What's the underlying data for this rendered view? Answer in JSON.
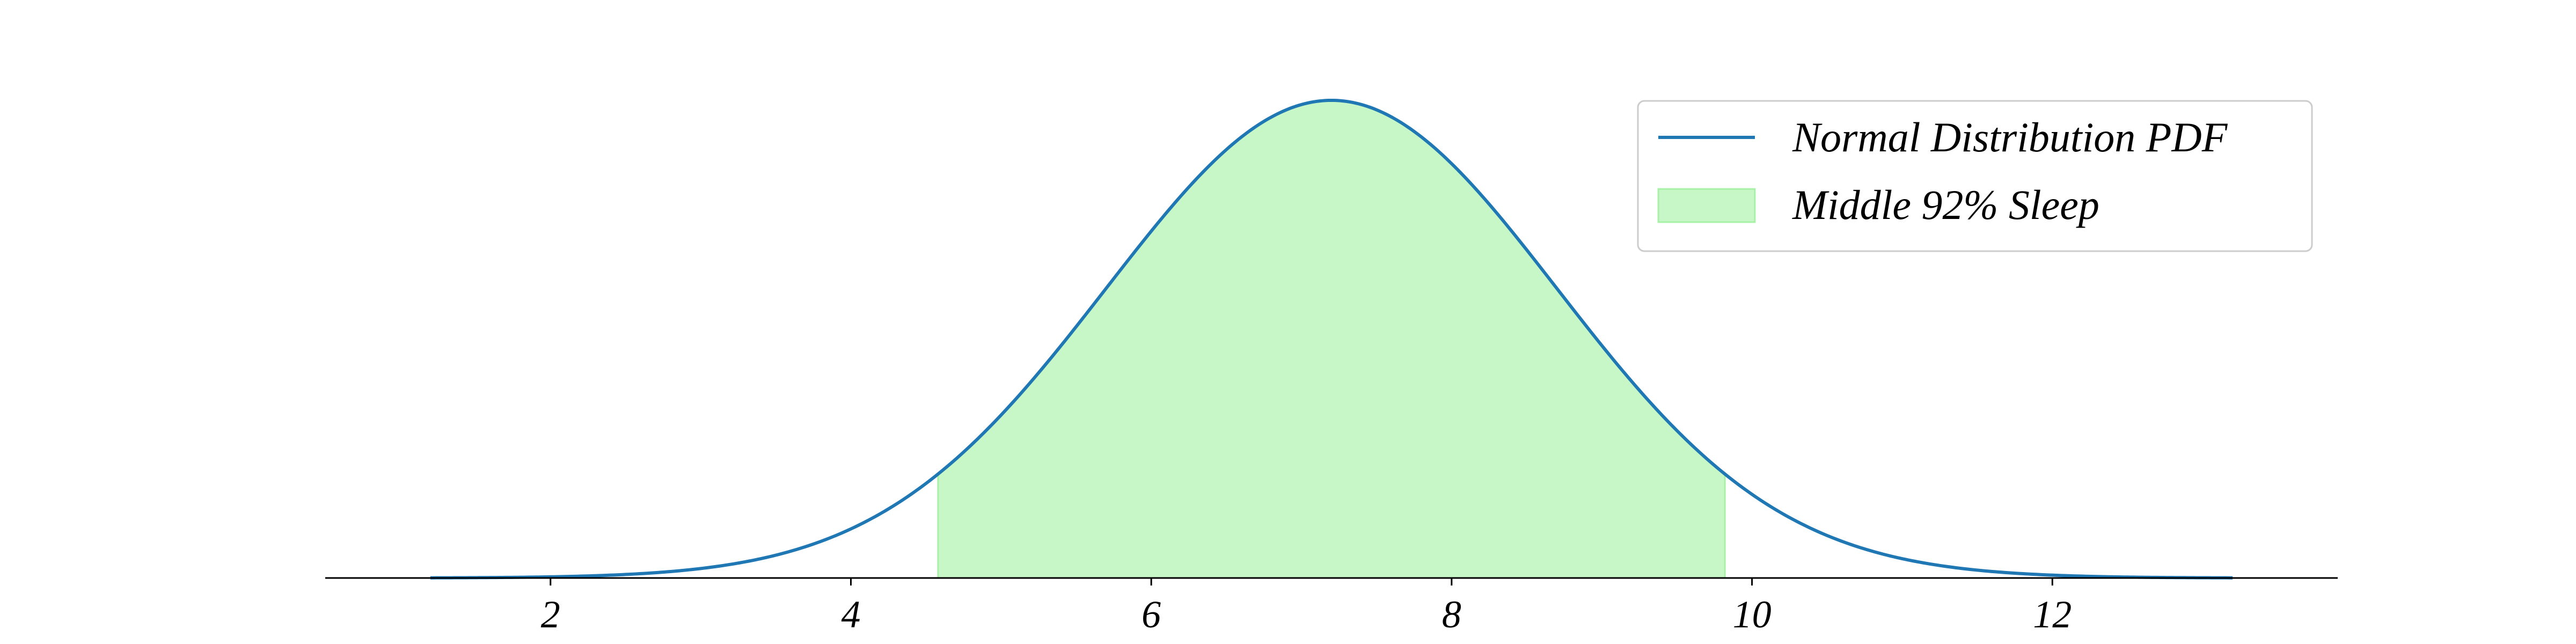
{
  "chart_data": {
    "type": "area",
    "title": "",
    "xlabel": "",
    "ylabel": "",
    "distribution": {
      "mean": 7.2,
      "std": 1.5,
      "x_start": 1.2,
      "x_end": 13.2
    },
    "shaded_region": {
      "from": 4.58,
      "to": 9.82,
      "percent": 92
    },
    "xlim": [
      0.5,
      13.9
    ],
    "ylim": [
      0,
      0.28
    ],
    "x_ticks": [
      {
        "value": 2,
        "label": "2"
      },
      {
        "value": 4,
        "label": "4"
      },
      {
        "value": 6,
        "label": "6"
      },
      {
        "value": 8,
        "label": "8"
      },
      {
        "value": 10,
        "label": "10"
      },
      {
        "value": 12,
        "label": "12"
      }
    ],
    "grid": false,
    "y_axis_visible": false,
    "legend": {
      "placement": "top-right",
      "entries": [
        {
          "label": "Normal Distribution PDF",
          "kind": "line",
          "color": "#1f77b4"
        },
        {
          "label": "Middle 92% Sleep",
          "kind": "patch",
          "color": "#90ee90"
        }
      ]
    },
    "colors": {
      "line": "#1f77b4",
      "fill": "#90ee90",
      "axis": "#000000"
    }
  }
}
